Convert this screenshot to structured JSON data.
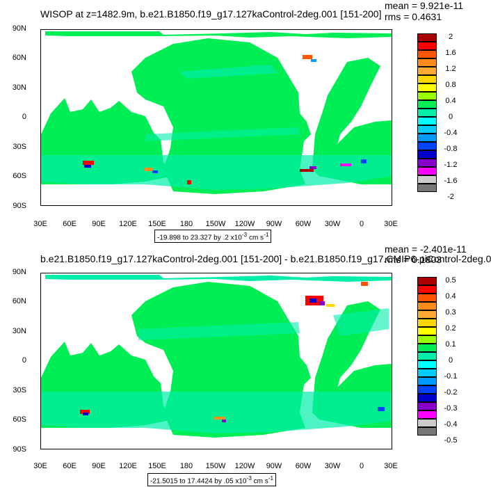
{
  "panels": [
    {
      "title": "WISOP at z=1482.9m, b.e21.B1850.f19_g17.127kaControl-2deg.001 [151-200]",
      "mean": "mean = 9.921e-11",
      "rms": "rms = 0.4631",
      "range_prefix": "-19.898 to 23.327 by .2 x10",
      "range_exp": "-3",
      "range_units": " cm s",
      "range_unit_exp": "-1",
      "lat_labels": [
        "90N",
        "60N",
        "30N",
        "0",
        "30S",
        "60S",
        "90S"
      ],
      "lon_labels": [
        "30E",
        "60E",
        "90E",
        "120E",
        "150E",
        "180",
        "150W",
        "120W",
        "90W",
        "60W",
        "30W",
        "0",
        "30E"
      ],
      "colorbar_labels": [
        "2",
        "1.6",
        "1.2",
        "0.8",
        "0.4",
        "0",
        "-0.4",
        "-0.8",
        "-1.2",
        "-1.6",
        "-2"
      ]
    },
    {
      "title": "b.e21.B1850.f19_g17.127kaControl-2deg.001 [151-200] - b.e21.B1850.f19_g17.CMIP6-piControl-2deg.0",
      "mean": "mean = -2.401e-11",
      "rms": "rms = 0.1803",
      "range_prefix": "-21.5015 to 17.4424 by .05 x10",
      "range_exp": "-3",
      "range_units": " cm s",
      "range_unit_exp": "-1",
      "lat_labels": [
        "90N",
        "60N",
        "30N",
        "0",
        "30S",
        "60S",
        "90S"
      ],
      "lon_labels": [
        "30E",
        "60E",
        "90E",
        "120E",
        "150E",
        "180",
        "150W",
        "120W",
        "90W",
        "60W",
        "30W",
        "0",
        "30E"
      ],
      "colorbar_labels": [
        "0.5",
        "0.4",
        "0.3",
        "0.2",
        "0.1",
        "0",
        "-0.1",
        "-0.2",
        "-0.3",
        "-0.4",
        "-0.5"
      ]
    }
  ],
  "palette": [
    "#aa0000",
    "#ff0000",
    "#ff5500",
    "#ff8c1a",
    "#ffaa33",
    "#ffd700",
    "#ffff00",
    "#99ff00",
    "#00ee55",
    "#00eeaa",
    "#00ffff",
    "#00ccff",
    "#0099ff",
    "#0044ff",
    "#0000cc",
    "#8800cc",
    "#ff00ff",
    "#cccccc",
    "#777777"
  ]
}
